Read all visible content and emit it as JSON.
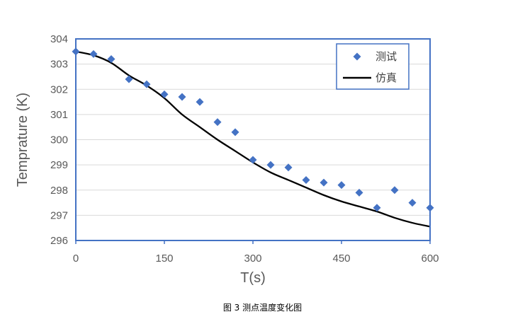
{
  "caption": "图 3 测点温度变化图",
  "chart_data": {
    "type": "scatter",
    "xlabel": "T(s)",
    "ylabel": "Temprature (K)",
    "xlim": [
      0,
      600
    ],
    "ylim": [
      296,
      304
    ],
    "xticks": [
      0,
      150,
      300,
      450,
      600
    ],
    "yticks": [
      296,
      297,
      298,
      299,
      300,
      301,
      302,
      303,
      304
    ],
    "grid": "horizontal",
    "legend_position": "top-right",
    "colors": {
      "measured": "#4472C4",
      "simulated": "#000000",
      "frame": "#4472C4",
      "grid": "#d9d9d9"
    },
    "series": [
      {
        "name": "测试",
        "marker": "diamond",
        "x": [
          0,
          30,
          60,
          90,
          120,
          150,
          180,
          210,
          240,
          270,
          300,
          330,
          360,
          390,
          420,
          450,
          480,
          510,
          540,
          570,
          600
        ],
        "y": [
          303.5,
          303.4,
          303.2,
          302.4,
          302.2,
          301.8,
          301.7,
          301.5,
          300.7,
          300.3,
          299.2,
          299.0,
          298.9,
          298.4,
          298.3,
          298.2,
          297.9,
          297.3,
          298.0,
          297.5,
          297.3
        ]
      },
      {
        "name": "仿真",
        "line": "solid",
        "x": [
          0,
          30,
          60,
          90,
          120,
          150,
          180,
          210,
          240,
          270,
          300,
          330,
          360,
          390,
          420,
          450,
          480,
          510,
          540,
          570,
          600
        ],
        "y": [
          303.5,
          303.35,
          303.05,
          302.55,
          302.15,
          301.65,
          301.0,
          300.5,
          300.0,
          299.55,
          299.1,
          298.7,
          298.4,
          298.1,
          297.8,
          297.55,
          297.35,
          297.15,
          296.9,
          296.7,
          296.55
        ]
      }
    ]
  }
}
